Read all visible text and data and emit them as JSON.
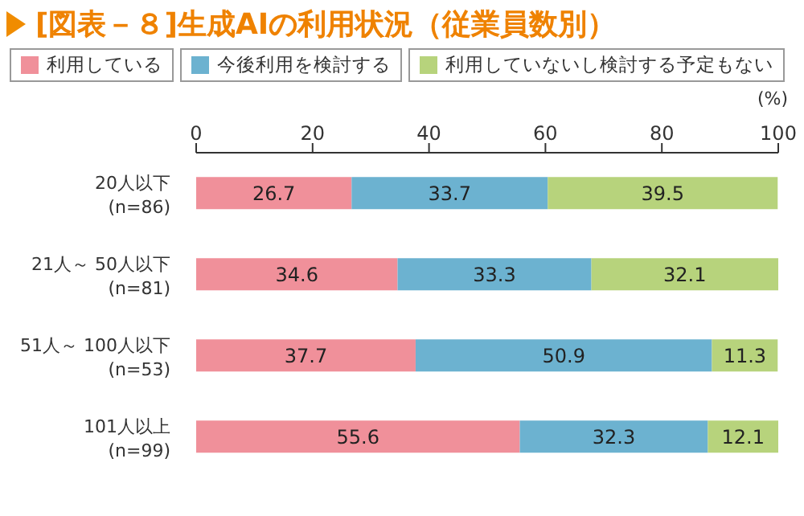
{
  "chart_data": {
    "type": "bar",
    "title": "[図表－８]生成AIの利用状況（従業員数別）",
    "xlabel": "(%)",
    "orientation": "horizontal",
    "stacked": true,
    "data_labels": true,
    "legend": "top",
    "grid": false,
    "categories": [
      "20人以下\n(n=86)",
      "21人～ 50人以下\n(n=81)",
      "51人～ 100人以下\n(n=53)",
      "101人以上\n(n=99)"
    ],
    "series": [
      {
        "name": "利用している",
        "color": "#f0909a",
        "values": [
          26.7,
          34.6,
          37.7,
          55.6
        ]
      },
      {
        "name": "今後利用を検討する",
        "color": "#6cb2d0",
        "values": [
          33.7,
          33.3,
          50.9,
          32.3
        ]
      },
      {
        "name": "利用していないし検討する予定もない",
        "color": "#b7d37c",
        "values": [
          39.5,
          32.1,
          11.3,
          12.1
        ]
      }
    ],
    "xlim": [
      0,
      100
    ],
    "xticks": [
      0,
      20,
      40,
      60,
      80,
      100
    ]
  }
}
